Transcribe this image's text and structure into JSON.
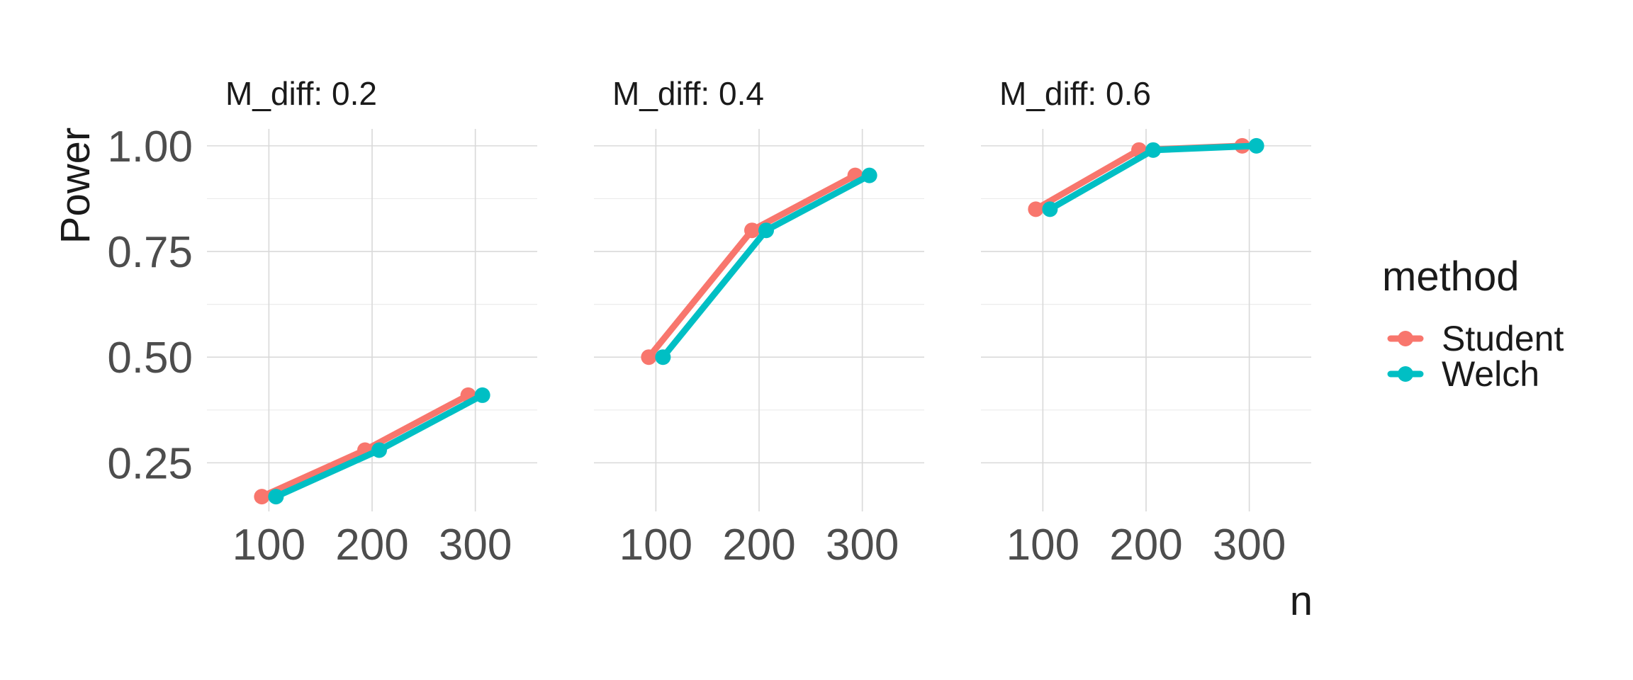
{
  "chart_data": {
    "type": "line",
    "facet_variable": "M_diff",
    "facets": [
      {
        "title": "M_diff: 0.2",
        "series": [
          {
            "name": "Student",
            "x": [
              100,
              200,
              300
            ],
            "y": [
              0.17,
              0.28,
              0.41
            ]
          },
          {
            "name": "Welch",
            "x": [
              100,
              200,
              300
            ],
            "y": [
              0.17,
              0.28,
              0.41
            ]
          }
        ]
      },
      {
        "title": "M_diff: 0.4",
        "series": [
          {
            "name": "Student",
            "x": [
              100,
              200,
              300
            ],
            "y": [
              0.5,
              0.8,
              0.93
            ]
          },
          {
            "name": "Welch",
            "x": [
              100,
              200,
              300
            ],
            "y": [
              0.5,
              0.8,
              0.93
            ]
          }
        ]
      },
      {
        "title": "M_diff: 0.6",
        "series": [
          {
            "name": "Student",
            "x": [
              100,
              200,
              300
            ],
            "y": [
              0.85,
              0.99,
              1.0
            ]
          },
          {
            "name": "Welch",
            "x": [
              100,
              200,
              300
            ],
            "y": [
              0.85,
              0.99,
              1.0
            ]
          }
        ]
      }
    ],
    "xlabel": "n",
    "ylabel": "Power",
    "x_ticks": [
      100,
      200,
      300
    ],
    "x_tick_labels": [
      "100",
      "200",
      "300"
    ],
    "y_ticks": [
      0.25,
      0.5,
      0.75,
      1.0
    ],
    "y_tick_labels": [
      "0.25",
      "0.50",
      "0.75",
      "1.00"
    ],
    "xlim": [
      40,
      360
    ],
    "ylim": [
      0.135,
      1.04
    ],
    "grid": true,
    "position_dodge": true,
    "legend": {
      "title": "method",
      "position": "right",
      "entries": [
        {
          "name": "Student",
          "color": "#F8766D"
        },
        {
          "name": "Welch",
          "color": "#00BFC4"
        }
      ]
    },
    "colors": {
      "Student": "#F8766D",
      "Welch": "#00BFC4"
    }
  }
}
